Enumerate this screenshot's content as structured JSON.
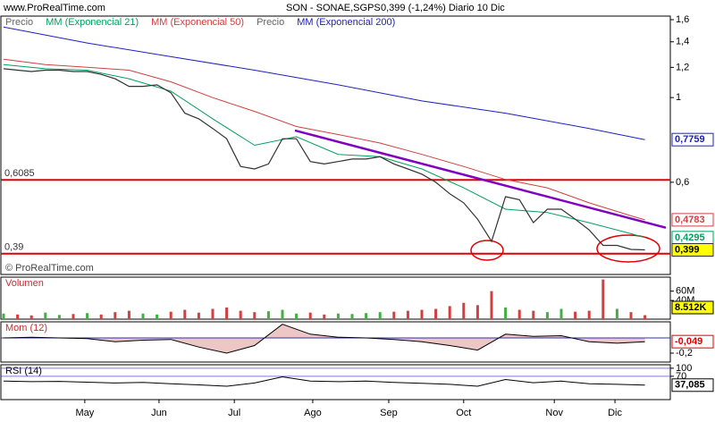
{
  "chart_data": [
    {
      "type": "line",
      "log_scale": true,
      "site": "www.ProRealTime.com",
      "title": "SON - SONAE,SGPS",
      "subtitle": "0,399 (-1,24%)   Diario  10 Dic",
      "footer": "© ProRealTime.com",
      "legend_extra": "Precio",
      "xlim": [
        0,
        190
      ],
      "ylim": [
        0.344,
        1.635
      ],
      "yticks": [
        {
          "value": 0.6,
          "label": "0,6"
        },
        1,
        {
          "value": 1.2,
          "label": "1,2"
        },
        {
          "value": 1.4,
          "label": "1,4"
        },
        {
          "value": 1.6,
          "label": "1,6"
        }
      ],
      "xticks": [
        {
          "value": 23.3,
          "label": "May"
        },
        {
          "value": 44.6,
          "label": "Jun"
        },
        {
          "value": 66.2,
          "label": "Jul"
        },
        {
          "value": 88.7,
          "label": "Ago"
        },
        {
          "value": 110.5,
          "label": "Sep"
        },
        {
          "value": 132,
          "label": "Oct"
        },
        {
          "value": 158,
          "label": "Nov"
        },
        {
          "value": 175.4,
          "label": "Dic"
        }
      ],
      "series": [
        {
          "name": "Precio",
          "color": "#333333",
          "label_bg": "#ffff00",
          "last_label": "0,399",
          "x": [
            0,
            4,
            8,
            12,
            16,
            20,
            24,
            28,
            32,
            36,
            40,
            44,
            48,
            52,
            56,
            60,
            64,
            68,
            72,
            76,
            80,
            84,
            88,
            92,
            96,
            100,
            104,
            108,
            112,
            116,
            120,
            124,
            128,
            132,
            136,
            140,
            144,
            148,
            152,
            156,
            160,
            164,
            168,
            172,
            176,
            180,
            184
          ],
          "values": [
            1.19,
            1.18,
            1.17,
            1.18,
            1.18,
            1.17,
            1.17,
            1.15,
            1.12,
            1.07,
            1.07,
            1.08,
            1.03,
            0.91,
            0.88,
            0.83,
            0.78,
            0.66,
            0.65,
            0.67,
            0.78,
            0.78,
            0.68,
            0.67,
            0.68,
            0.69,
            0.69,
            0.7,
            0.67,
            0.65,
            0.63,
            0.6,
            0.56,
            0.53,
            0.48,
            0.42,
            0.55,
            0.54,
            0.47,
            0.51,
            0.51,
            0.48,
            0.45,
            0.41,
            0.41,
            0.4,
            0.399
          ]
        },
        {
          "name": "MM (Exponencial 21)",
          "color": "#00a060",
          "last_label": "0,4295",
          "x": [
            0,
            12,
            24,
            36,
            48,
            60,
            72,
            84,
            96,
            108,
            120,
            132,
            144,
            156,
            168,
            180,
            184
          ],
          "values": [
            1.22,
            1.19,
            1.18,
            1.12,
            1.04,
            0.88,
            0.75,
            0.79,
            0.71,
            0.7,
            0.65,
            0.58,
            0.51,
            0.5,
            0.47,
            0.44,
            0.4295
          ]
        },
        {
          "name": "MM (Exponencial 50)",
          "color": "#d04040",
          "last_label": "0,4783",
          "x": [
            0,
            12,
            24,
            36,
            48,
            60,
            72,
            84,
            96,
            108,
            120,
            132,
            144,
            156,
            168,
            180,
            184
          ],
          "values": [
            1.26,
            1.22,
            1.2,
            1.18,
            1.1,
            1.0,
            0.92,
            0.84,
            0.8,
            0.76,
            0.71,
            0.66,
            0.61,
            0.58,
            0.53,
            0.49,
            0.4783
          ]
        },
        {
          "name": "MM (Exponencial 200)",
          "color": "#2020c0",
          "last_label": "0,7759",
          "x": [
            0,
            24,
            48,
            72,
            96,
            120,
            144,
            168,
            184
          ],
          "values": [
            1.53,
            1.39,
            1.28,
            1.18,
            1.08,
            0.98,
            0.91,
            0.83,
            0.7759
          ]
        }
      ],
      "levels": [
        {
          "value": 0.6085,
          "label": "0,6085"
        },
        {
          "value": 0.39,
          "label": "0,39"
        }
      ],
      "level_color": "#e00000",
      "trendline": {
        "color": "#8000c0",
        "x": [
          83.6,
          190
        ],
        "values": [
          0.82,
          0.456
        ]
      }
    },
    {
      "type": "bar",
      "title": "Volumen",
      "title_color": "#c03030",
      "xlim": [
        0,
        190
      ],
      "ylim": [
        0,
        90
      ],
      "yticks": [
        {
          "value": 40,
          "label": "40M"
        },
        {
          "value": 60,
          "label": "60M"
        }
      ],
      "up_color": "#40b040",
      "down_color": "#d04040",
      "last_label": "8.512K",
      "x": [
        0,
        4,
        8,
        12,
        16,
        20,
        24,
        28,
        32,
        36,
        40,
        44,
        48,
        52,
        56,
        60,
        64,
        68,
        72,
        76,
        80,
        84,
        88,
        92,
        96,
        100,
        104,
        108,
        112,
        116,
        120,
        124,
        128,
        132,
        136,
        140,
        144,
        148,
        152,
        156,
        160,
        164,
        168,
        172,
        176,
        180,
        184
      ],
      "values": [
        12,
        10,
        8,
        14,
        9,
        11,
        13,
        10,
        15,
        18,
        12,
        10,
        16,
        20,
        14,
        22,
        25,
        18,
        15,
        17,
        20,
        12,
        14,
        10,
        12,
        11,
        13,
        15,
        16,
        18,
        20,
        22,
        28,
        35,
        30,
        60,
        25,
        20,
        18,
        15,
        22,
        16,
        18,
        85,
        22,
        15,
        8.512
      ]
    },
    {
      "type": "momentum",
      "title": "Mom (12)",
      "title_color": "#c03030",
      "color": "#000000",
      "zero_color": "#3030c0",
      "pos_fill": "#a0d8a0",
      "neg_fill": "#e8b8b8",
      "xlim": [
        0,
        190
      ],
      "ylim": [
        -0.318,
        0.212
      ],
      "yticks": [
        {
          "value": -0.2,
          "label": "-0,2"
        }
      ],
      "last_label": "-0,049",
      "x": [
        0,
        8,
        16,
        24,
        32,
        40,
        48,
        56,
        64,
        72,
        80,
        88,
        96,
        104,
        112,
        120,
        128,
        136,
        144,
        152,
        160,
        168,
        176,
        184
      ],
      "values": [
        0,
        0.01,
        0,
        -0.01,
        -0.05,
        -0.03,
        -0.02,
        -0.12,
        -0.2,
        -0.1,
        0.18,
        0.05,
        0.01,
        0,
        -0.02,
        -0.05,
        -0.1,
        -0.16,
        0.05,
        0.02,
        0.03,
        -0.05,
        -0.07,
        -0.049
      ]
    },
    {
      "type": "rsi",
      "title": "RSI (14)",
      "title_color": "#000000",
      "color": "#000000",
      "band_color": "#3030c0",
      "xlim": [
        0,
        190
      ],
      "ylim": [
        -17,
        113
      ],
      "yticks": [
        70,
        100
      ],
      "last_label": "37,085",
      "x": [
        0,
        8,
        16,
        24,
        32,
        40,
        48,
        56,
        64,
        72,
        80,
        88,
        96,
        104,
        112,
        120,
        128,
        136,
        144,
        152,
        160,
        168,
        176,
        184
      ],
      "values": [
        52,
        50,
        51,
        48,
        45,
        47,
        42,
        38,
        33,
        45,
        68,
        52,
        50,
        52,
        47,
        44,
        40,
        33,
        58,
        46,
        52,
        42,
        40,
        37.085
      ]
    }
  ]
}
